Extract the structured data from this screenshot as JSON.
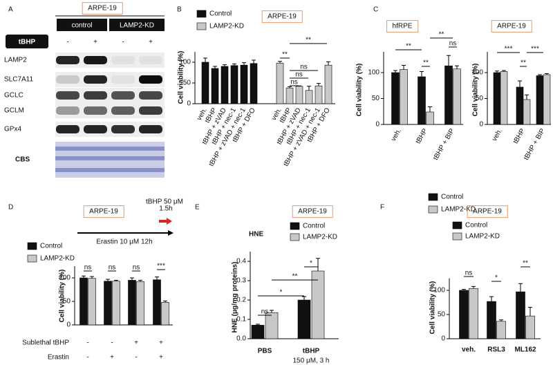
{
  "panel_labels": [
    "A",
    "B",
    "C",
    "D",
    "E",
    "F"
  ],
  "blot": {
    "title": "ARPE-19",
    "groups": [
      "control",
      "LAMP2-KD"
    ],
    "treatment": "tBHP",
    "signs": [
      "-",
      "+",
      "-",
      "+"
    ],
    "rows": [
      "LAMP2",
      "SLC7A11",
      "GCLC",
      "GCLM",
      "GPx4",
      "CBS"
    ]
  },
  "schematic": {
    "title": "ARPE-19",
    "pulse": "tBHP 50 μM",
    "pulse_time": "1.5h",
    "bar_label": "Erastin 10 μM  12h"
  },
  "chart_data": [
    {
      "type": "bar",
      "title": "ARPE-19",
      "ylabel": "Cell viability (%)",
      "categories": [
        "veh.",
        "tBHP",
        "tBHP + zVAD",
        "tBHP + nec-1",
        "tBHP + zVAD + nec-1",
        "tBHP + DFO"
      ],
      "series": [
        {
          "name": "Control",
          "color": "#111111",
          "values": [
            100,
            85,
            90,
            92,
            93,
            97
          ],
          "errors": [
            10,
            5,
            4,
            4,
            6,
            8
          ]
        },
        {
          "name": "LAMP2-KD",
          "color": "#c8c8c8",
          "values": [
            98,
            38,
            42,
            32,
            43,
            93
          ],
          "errors": [
            4,
            3,
            1,
            10,
            6,
            8
          ]
        }
      ],
      "ylim": [
        0,
        125
      ],
      "yticks": [
        0,
        50,
        100
      ],
      "annotations": [
        "**",
        "**",
        "ns",
        "ns",
        "ns"
      ]
    },
    {
      "type": "bar",
      "title": "hfRPE",
      "ylabel": "Cell viability (%)",
      "categories": [
        "veh.",
        "tBHP",
        "tBHP + BIP"
      ],
      "series": [
        {
          "color": "#111111",
          "values": [
            100,
            92,
            113
          ],
          "errors": [
            4,
            10,
            20
          ]
        },
        {
          "color": "#c8c8c8",
          "values": [
            106,
            24,
            107
          ],
          "errors": [
            8,
            10,
            6
          ]
        }
      ],
      "ylim": [
        0,
        140
      ],
      "yticks": [
        0,
        50,
        100
      ],
      "annotations": [
        "**",
        "**",
        "**",
        "ns"
      ]
    },
    {
      "type": "bar",
      "title": "ARPE-19",
      "ylabel": "Cell viability (%)",
      "categories": [
        "veh.",
        "tBHP",
        "tBHP + BIP"
      ],
      "series": [
        {
          "name": "Control",
          "color": "#111111",
          "values": [
            100,
            72,
            94
          ],
          "errors": [
            3,
            12,
            2
          ]
        },
        {
          "name": "LAMP2-KD",
          "color": "#c8c8c8",
          "values": [
            102,
            48,
            96
          ],
          "errors": [
            2,
            9,
            2
          ]
        }
      ],
      "ylim": [
        0,
        140
      ],
      "yticks": [
        0,
        50,
        100
      ],
      "annotations": [
        "***",
        "**",
        "***"
      ]
    },
    {
      "type": "bar",
      "ylabel": "Cell viability (%)",
      "series": [
        {
          "name": "Control",
          "color": "#111111",
          "values": [
            100,
            93,
            95,
            96
          ],
          "errors": [
            4,
            4,
            5,
            6
          ]
        },
        {
          "name": "LAMP2-KD",
          "color": "#c8c8c8",
          "values": [
            99,
            93,
            92,
            48
          ],
          "errors": [
            4,
            2,
            3,
            3
          ]
        }
      ],
      "ylim": [
        0,
        125
      ],
      "yticks": [
        0,
        50,
        100
      ],
      "annotations": [
        "ns",
        "ns",
        "ns",
        "***"
      ],
      "rows": [
        {
          "label": "Sublethal tBHP",
          "signs": [
            "-",
            "-",
            "+",
            "+"
          ]
        },
        {
          "label": "Erastin",
          "signs": [
            "-",
            "+",
            "-",
            "+"
          ]
        }
      ]
    },
    {
      "type": "bar",
      "title": "ARPE-19",
      "heading": "HNE",
      "ylabel": "HNE (μg/mg proteins)",
      "categories": [
        "PBS",
        "tBHP"
      ],
      "category_note": "150 μM, 3 h",
      "series": [
        {
          "name": "Control",
          "color": "#111111",
          "values": [
            0.07,
            0.2
          ],
          "errors": [
            0.005,
            0.018
          ]
        },
        {
          "name": "LAMP2-KD",
          "color": "#c8c8c8",
          "values": [
            0.135,
            0.35
          ],
          "errors": [
            0.012,
            0.065
          ]
        }
      ],
      "ylim": [
        0,
        0.45
      ],
      "yticks": [
        {
          "value": 0,
          "label": "0.0"
        },
        0.1,
        0.2,
        0.3,
        0.4
      ],
      "annotations": [
        "ns",
        "*",
        "**",
        "*"
      ]
    },
    {
      "type": "bar",
      "title": "ARPE-19",
      "ylabel": "Cell viability (%)",
      "categories": [
        "veh.",
        "RSL3",
        "ML162"
      ],
      "series": [
        {
          "name": "Control",
          "color": "#111111",
          "values": [
            100,
            77,
            97
          ],
          "errors": [
            2,
            10,
            17
          ]
        },
        {
          "name": "LAMP2-KD",
          "color": "#c8c8c8",
          "values": [
            104,
            36,
            47
          ],
          "errors": [
            4,
            3,
            18
          ]
        }
      ],
      "ylim": [
        0,
        125
      ],
      "yticks": [
        0,
        50,
        100
      ],
      "annotations": [
        "ns",
        "*",
        "**"
      ]
    }
  ]
}
